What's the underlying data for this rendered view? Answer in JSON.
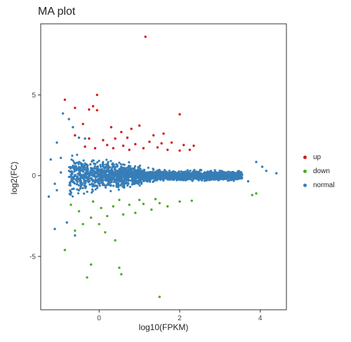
{
  "chart_data": {
    "type": "scatter",
    "title": "MA plot",
    "xlabel": "log10(FPKM)",
    "ylabel": "log2(FC)",
    "xlim": [
      -1.45,
      4.65
    ],
    "ylim": [
      -8.3,
      9.4
    ],
    "xticks": [
      0,
      2,
      4
    ],
    "yticks": [
      -5,
      0,
      5
    ],
    "xtick_labels": [
      "0",
      "2",
      "4"
    ],
    "ytick_labels": [
      "-5",
      "0",
      "5"
    ],
    "grid": false,
    "legend_position": "right",
    "series": [
      {
        "name": "up",
        "color": "#d7191c",
        "points": [
          [
            1.15,
            8.6
          ],
          [
            -0.05,
            5.0
          ],
          [
            -0.85,
            4.7
          ],
          [
            -0.6,
            4.2
          ],
          [
            -0.25,
            4.1
          ],
          [
            -0.15,
            4.3
          ],
          [
            -0.05,
            4.05
          ],
          [
            2.0,
            3.8
          ],
          [
            0.8,
            2.9
          ],
          [
            1.0,
            3.1
          ],
          [
            -0.4,
            3.2
          ],
          [
            0.3,
            3.0
          ],
          [
            0.55,
            2.7
          ],
          [
            1.35,
            2.5
          ],
          [
            1.6,
            2.6
          ],
          [
            -0.6,
            2.5
          ],
          [
            -0.25,
            2.3
          ],
          [
            0.1,
            2.2
          ],
          [
            0.4,
            2.3
          ],
          [
            0.7,
            2.35
          ],
          [
            1.25,
            2.1
          ],
          [
            1.55,
            2.0
          ],
          [
            1.8,
            2.05
          ],
          [
            2.1,
            1.9
          ],
          [
            2.35,
            1.85
          ],
          [
            0.2,
            1.9
          ],
          [
            0.6,
            1.85
          ],
          [
            0.9,
            1.95
          ],
          [
            1.45,
            1.75
          ],
          [
            -0.1,
            1.7
          ],
          [
            0.35,
            1.7
          ],
          [
            0.75,
            1.6
          ],
          [
            1.1,
            1.7
          ],
          [
            1.7,
            1.6
          ],
          [
            2.0,
            1.55
          ],
          [
            2.25,
            1.6
          ],
          [
            -0.35,
            1.8
          ]
        ]
      },
      {
        "name": "down",
        "color": "#4dac26",
        "points": [
          [
            -0.85,
            -4.6
          ],
          [
            -0.3,
            -6.3
          ],
          [
            -0.2,
            -5.5
          ],
          [
            0.5,
            -5.7
          ],
          [
            0.55,
            -6.1
          ],
          [
            1.5,
            -7.5
          ],
          [
            0.0,
            -3.0
          ],
          [
            0.4,
            -4.0
          ],
          [
            -0.6,
            -3.4
          ],
          [
            -0.4,
            -3.0
          ],
          [
            -0.2,
            -2.6
          ],
          [
            0.2,
            -2.5
          ],
          [
            0.6,
            -2.4
          ],
          [
            0.9,
            -2.3
          ],
          [
            1.3,
            -2.1
          ],
          [
            1.7,
            -1.9
          ],
          [
            -0.5,
            -2.2
          ],
          [
            0.05,
            -2.0
          ],
          [
            0.35,
            -1.9
          ],
          [
            0.75,
            -1.8
          ],
          [
            1.1,
            -1.75
          ],
          [
            1.5,
            -1.7
          ],
          [
            2.0,
            -1.6
          ],
          [
            2.3,
            -1.55
          ],
          [
            -0.15,
            -1.6
          ],
          [
            0.5,
            -1.5
          ],
          [
            1.0,
            -1.5
          ],
          [
            1.4,
            -1.45
          ],
          [
            3.9,
            -1.1
          ],
          [
            3.8,
            -1.2
          ],
          [
            -0.7,
            -1.8
          ],
          [
            0.15,
            -3.5
          ]
        ]
      },
      {
        "name": "normal",
        "color": "#377eb8",
        "points": [
          [
            -1.2,
            1.0
          ],
          [
            -1.25,
            -1.3
          ],
          [
            -1.05,
            2.05
          ],
          [
            -0.95,
            1.1
          ],
          [
            -1.1,
            -0.5
          ],
          [
            -0.95,
            0.2
          ],
          [
            -1.05,
            -0.9
          ],
          [
            -1.1,
            -3.3
          ],
          [
            -0.9,
            3.85
          ],
          [
            -0.75,
            3.5
          ],
          [
            -0.65,
            3.0
          ],
          [
            -0.5,
            2.35
          ],
          [
            -0.35,
            2.3
          ],
          [
            4.15,
            0.3
          ],
          [
            4.05,
            0.55
          ],
          [
            3.7,
            -0.35
          ],
          [
            3.55,
            0.05
          ],
          [
            4.4,
            0.15
          ],
          [
            3.9,
            0.85
          ],
          [
            -0.8,
            -2.9
          ],
          [
            -0.6,
            -3.7
          ]
        ]
      }
    ]
  }
}
